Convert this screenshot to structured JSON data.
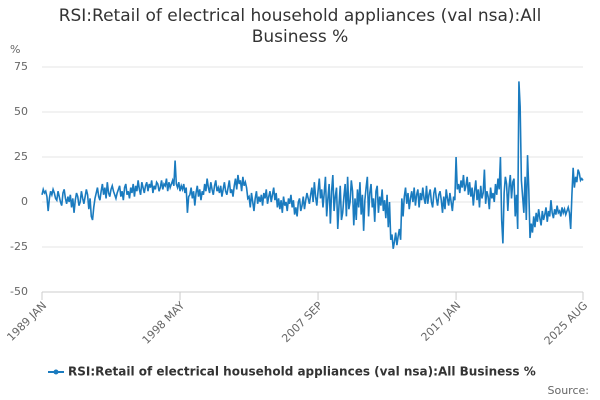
{
  "chart_data": {
    "type": "line",
    "title": "RSI:Retail of electrical household appliances (val nsa):All Business %",
    "y_label": "%",
    "source": "Source:",
    "ylim": [
      -50,
      75
    ],
    "yticks": [
      75,
      50,
      25,
      0,
      -25,
      -50
    ],
    "grid": true,
    "legend": "bottom",
    "categories": [
      "1989 JAN",
      null,
      null,
      null,
      null,
      null,
      null,
      null,
      null,
      null,
      null,
      null,
      null,
      null,
      null,
      null,
      null,
      null,
      null,
      null,
      null,
      null,
      null,
      null,
      null,
      null,
      null,
      null,
      null,
      null,
      null,
      null,
      null,
      null,
      null,
      null,
      null,
      null,
      null,
      null,
      null,
      null,
      null,
      null,
      null,
      null,
      null,
      null,
      null,
      null,
      null,
      null,
      null,
      null,
      null,
      null,
      null,
      null,
      null,
      null,
      null,
      null,
      null,
      null,
      null,
      null,
      null,
      null,
      null,
      null,
      null,
      null,
      null,
      null,
      null,
      null,
      null,
      null,
      null,
      null,
      null,
      null,
      null,
      null,
      null,
      null,
      null,
      null,
      null,
      null,
      null,
      null,
      null,
      null,
      null,
      null,
      null,
      null,
      null,
      null,
      null,
      null,
      null,
      null,
      null,
      null,
      null,
      null,
      null,
      null,
      null,
      null,
      "1998 MAY",
      null,
      null,
      null,
      null,
      null,
      null,
      null,
      null,
      null,
      null,
      null,
      null,
      null,
      null,
      null,
      null,
      null,
      null,
      null,
      null,
      null,
      null,
      null,
      null,
      null,
      null,
      null,
      null,
      null,
      null,
      null,
      null,
      null,
      null,
      null,
      null,
      null,
      null,
      null,
      null,
      null,
      null,
      null,
      null,
      null,
      null,
      null,
      null,
      null,
      null,
      null,
      null,
      null,
      null,
      null,
      null,
      null,
      null,
      null,
      null,
      null,
      null,
      null,
      null,
      null,
      null,
      null,
      null,
      null,
      null,
      null,
      null,
      null,
      null,
      null,
      null,
      null,
      null,
      null,
      null,
      null,
      null,
      null,
      null,
      null,
      null,
      null,
      null,
      null,
      null,
      null,
      null,
      null,
      null,
      null,
      null,
      null,
      null,
      null,
      null,
      null,
      null,
      null,
      null,
      null,
      null,
      null,
      null,
      null,
      null,
      null,
      "2007 SEP",
      null,
      null,
      null,
      null,
      null,
      null,
      null,
      null,
      null,
      null,
      null,
      null,
      null,
      null,
      null,
      null,
      null,
      null,
      null,
      null,
      null,
      null,
      null,
      null,
      null,
      null,
      null,
      null,
      null,
      null,
      null,
      null,
      null,
      null,
      null,
      null,
      null,
      null,
      null,
      null,
      null,
      null,
      null,
      null,
      null,
      null,
      null,
      null,
      null,
      null,
      null,
      null,
      null,
      null,
      null,
      null,
      null,
      null,
      null,
      null,
      null,
      null,
      null,
      null,
      null,
      null,
      null,
      null,
      null,
      null,
      null,
      null,
      null,
      null,
      null,
      null,
      null,
      null,
      null,
      null,
      null,
      null,
      null,
      null,
      null,
      null,
      null,
      null,
      null,
      null,
      null,
      null,
      null,
      null,
      null,
      null,
      null,
      null,
      null,
      null,
      null,
      null,
      null,
      null,
      null,
      null,
      null,
      null,
      null,
      null,
      null,
      "2017 JAN",
      null,
      null,
      null,
      null,
      null,
      null,
      null,
      null,
      null,
      null,
      null,
      null,
      null,
      null,
      null,
      null,
      null,
      null,
      null,
      null,
      null,
      null,
      null,
      null,
      null,
      null,
      null,
      null,
      null,
      null,
      null,
      null,
      null,
      null,
      null,
      null,
      null,
      null,
      null,
      null,
      null,
      null,
      null,
      null,
      null,
      null,
      null,
      null,
      null,
      null,
      null,
      null,
      null,
      null,
      null,
      null,
      null,
      null,
      null,
      null,
      null,
      null,
      null,
      null,
      null,
      null,
      null,
      null,
      null,
      null,
      null,
      null,
      null,
      null,
      null,
      null,
      null,
      null,
      null,
      null,
      null,
      null,
      null,
      null,
      null,
      null,
      null,
      null,
      null,
      null,
      null,
      null,
      null,
      null,
      null,
      null,
      null,
      null,
      null,
      null,
      null,
      null,
      "2025 AUG"
    ],
    "series": [
      {
        "name": "RSI:Retail of electrical household appliances (val nsa):All Business %",
        "color": "#1a7bbf",
        "values": [
          4,
          7,
          5,
          6,
          3,
          -5,
          2,
          6,
          4,
          7,
          5,
          2,
          1,
          6,
          3,
          0,
          -2,
          5,
          7,
          2,
          -1,
          3,
          0,
          4,
          -3,
          2,
          -6,
          1,
          5,
          3,
          -2,
          0,
          6,
          2,
          -1,
          3,
          7,
          4,
          -4,
          2,
          -8,
          -10,
          -3,
          2,
          5,
          8,
          3,
          1,
          6,
          10,
          4,
          8,
          2,
          11,
          5,
          3,
          7,
          9,
          6,
          4,
          2,
          5,
          7,
          9,
          3,
          6,
          1,
          8,
          10,
          4,
          6,
          2,
          8,
          5,
          10,
          3,
          9,
          6,
          12,
          7,
          4,
          11,
          8,
          5,
          9,
          11,
          6,
          10,
          8,
          12,
          5,
          9,
          7,
          11,
          10,
          6,
          8,
          12,
          7,
          10,
          9,
          13,
          6,
          11,
          8,
          10,
          12,
          9,
          23,
          10,
          8,
          11,
          6,
          9,
          7,
          10,
          5,
          8,
          -6,
          3,
          4,
          8,
          2,
          6,
          -2,
          5,
          9,
          3,
          7,
          1,
          6,
          4,
          10,
          6,
          13,
          8,
          5,
          11,
          7,
          4,
          9,
          12,
          6,
          8,
          5,
          9,
          3,
          7,
          11,
          6,
          4,
          8,
          12,
          5,
          7,
          3,
          9,
          13,
          7,
          15,
          10,
          12,
          6,
          14,
          9,
          11,
          8,
          2,
          3,
          -3,
          5,
          0,
          -5,
          2,
          6,
          -1,
          3,
          0,
          4,
          -2,
          5,
          2,
          7,
          -1,
          3,
          6,
          0,
          4,
          8,
          1,
          5,
          -3,
          2,
          -4,
          1,
          -6,
          3,
          -2,
          0,
          -5,
          2,
          -1,
          4,
          -3,
          1,
          -7,
          -3,
          -8,
          0,
          2,
          -5,
          -2,
          3,
          -4,
          1,
          5,
          2,
          -1,
          4,
          8,
          0,
          11,
          3,
          -2,
          6,
          13,
          2,
          7,
          -3,
          5,
          14,
          -8,
          2,
          10,
          -12,
          6,
          15,
          -5,
          3,
          8,
          -15,
          -2,
          9,
          -10,
          -6,
          3,
          10,
          -8,
          14,
          -4,
          0,
          12,
          6,
          -13,
          2,
          -10,
          7,
          -3,
          11,
          -7,
          4,
          -16,
          1,
          8,
          14,
          -8,
          5,
          10,
          -3,
          2,
          -11,
          6,
          9,
          -6,
          3,
          -2,
          7,
          -5,
          1,
          -9,
          4,
          -14,
          0,
          -21,
          -18,
          -26,
          -22,
          -17,
          -24,
          -19,
          -15,
          -21,
          2,
          -8,
          3,
          8,
          -1,
          5,
          -4,
          2,
          6,
          0,
          8,
          -2,
          4,
          7,
          -3,
          5,
          1,
          8,
          2,
          -1,
          9,
          -1,
          4,
          7,
          0,
          -3,
          5,
          8,
          2,
          -2,
          4,
          6,
          1,
          -6,
          3,
          -4,
          7,
          2,
          -2,
          5,
          0,
          -5,
          3,
          1,
          25,
          7,
          10,
          5,
          12,
          8,
          15,
          6,
          9,
          14,
          4,
          11,
          3,
          8,
          -2,
          6,
          12,
          1,
          7,
          -3,
          9,
          2,
          5,
          18,
          -1,
          6,
          3,
          -4,
          8,
          2,
          5,
          0,
          10,
          4,
          13,
          7,
          25,
          -10,
          -23,
          5,
          14,
          10,
          -5,
          8,
          15,
          2,
          11,
          13,
          -8,
          4,
          -15,
          67,
          53,
          12,
          3,
          -6,
          14,
          -10,
          26,
          7,
          -20,
          -12,
          -17,
          -8,
          -14,
          -6,
          -11,
          -4,
          -9,
          -13,
          -5,
          -10,
          -7,
          -3,
          -11,
          -5,
          -8,
          1,
          -6,
          -9,
          -4,
          -7,
          -2,
          -6,
          -5,
          -8,
          -3,
          -6,
          -4,
          -7,
          -5,
          -3,
          -6,
          -15,
          4,
          19,
          8,
          14,
          11,
          18,
          16,
          12,
          13,
          12
        ]
      }
    ]
  }
}
